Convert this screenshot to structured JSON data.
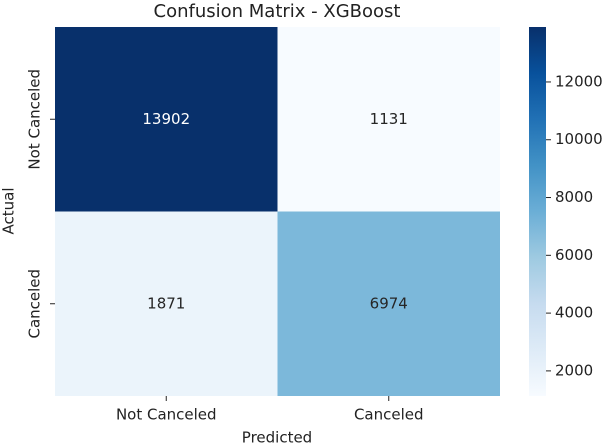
{
  "chart_data": {
    "type": "heatmap",
    "title": "Confusion Matrix - XGBoost",
    "x_label": "Predicted",
    "y_label": "Actual",
    "x_categories": [
      "Not Canceled",
      "Canceled"
    ],
    "y_categories": [
      "Not Canceled",
      "Canceled"
    ],
    "values": [
      [
        13902,
        1131
      ],
      [
        1871,
        6974
      ]
    ],
    "colormap": "Blues",
    "clim": [
      1131,
      13902
    ],
    "cticks": [
      2000,
      4000,
      6000,
      8000,
      10000,
      12000
    ]
  }
}
